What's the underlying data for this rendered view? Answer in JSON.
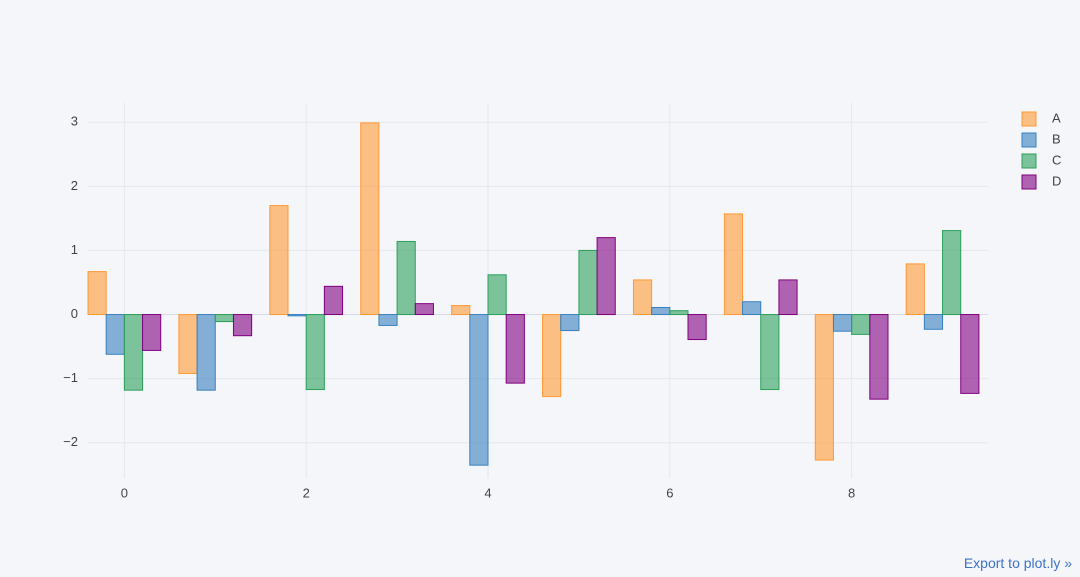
{
  "chart_data": {
    "type": "bar",
    "mode": "group",
    "x": [
      0,
      1,
      2,
      3,
      4,
      5,
      6,
      7,
      8,
      9
    ],
    "series": [
      {
        "name": "A",
        "color": "#FF9933",
        "values": [
          0.67,
          -0.92,
          1.7,
          2.99,
          0.14,
          -1.28,
          0.54,
          1.57,
          -2.27,
          0.79
        ]
      },
      {
        "name": "B",
        "color": "#3780BF",
        "values": [
          -0.62,
          -1.18,
          -0.02,
          -0.17,
          -2.35,
          -0.25,
          0.11,
          0.2,
          -0.26,
          -0.23
        ]
      },
      {
        "name": "C",
        "color": "#2CA05A",
        "values": [
          -1.18,
          -0.11,
          -1.17,
          1.14,
          0.62,
          1.0,
          0.06,
          -1.17,
          -0.31,
          1.31
        ]
      },
      {
        "name": "D",
        "color": "#800080",
        "values": [
          -0.56,
          -0.33,
          0.44,
          0.17,
          -1.07,
          1.2,
          -0.39,
          0.54,
          -1.32,
          -1.23
        ]
      }
    ],
    "xlim": [
      -0.4,
      9.5
    ],
    "xticks": [
      0,
      2,
      4,
      6,
      8
    ],
    "ylim": [
      -2.55,
      3.3
    ],
    "yticks": [
      {
        "value": -2,
        "label": "−2"
      },
      {
        "value": -1,
        "label": "−1"
      },
      0,
      1,
      2,
      3
    ],
    "grid": true,
    "legend": "top-right",
    "opacity": 0.6
  },
  "link_text": "Export to plot.ly »"
}
